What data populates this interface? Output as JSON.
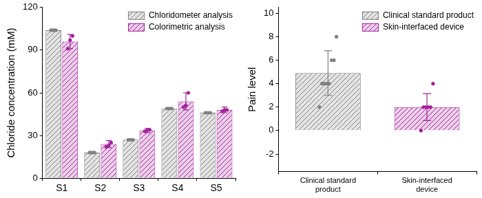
{
  "chart_data": [
    {
      "type": "bar",
      "categories": [
        "S1",
        "S2",
        "S3",
        "S4",
        "S5"
      ],
      "y_label": "Chloride concentration (mM)",
      "ylim": [
        0,
        120
      ],
      "yticks": [
        0,
        30,
        60,
        90,
        120
      ],
      "grid": false,
      "legend": "upper right",
      "series": [
        {
          "name": "Chloridometer analysis",
          "color": "#808080",
          "values": [
            104,
            18,
            27,
            49,
            46
          ],
          "errors": [
            0.4,
            0.4,
            0.4,
            0.4,
            0.4
          ],
          "points": [
            [
              104,
              104,
              104
            ],
            [
              18,
              18,
              18
            ],
            [
              27,
              27,
              27
            ],
            [
              49,
              49,
              49
            ],
            [
              46,
              46,
              46
            ]
          ]
        },
        {
          "name": "Colorimetric analysis",
          "color": "#a3239b",
          "values": [
            96,
            24,
            33.5,
            54,
            48
          ],
          "errors": [
            5,
            2.5,
            1.5,
            6,
            2
          ],
          "points": [
            [
              91,
              97,
              100
            ],
            [
              22,
              23,
              25
            ],
            [
              33,
              34,
              34
            ],
            [
              50,
              51,
              60
            ],
            [
              47,
              48,
              48
            ]
          ]
        }
      ]
    },
    {
      "type": "bar",
      "categories": [
        "Clinical standard product",
        "Skin-interfaced device"
      ],
      "y_label": "Pain level",
      "ylim": [
        -3.5,
        10.5
      ],
      "yticks": [
        -2,
        0,
        2,
        4,
        6,
        8,
        10
      ],
      "grid": false,
      "legend": "upper right",
      "colors": [
        "#808080",
        "#a3239b"
      ],
      "values": [
        4.9,
        2
      ],
      "errors": [
        1.9,
        1.15
      ],
      "points": [
        [
          2,
          4,
          4,
          4,
          4,
          6,
          6,
          8
        ],
        [
          0,
          2,
          2,
          2,
          2,
          4
        ]
      ]
    }
  ]
}
